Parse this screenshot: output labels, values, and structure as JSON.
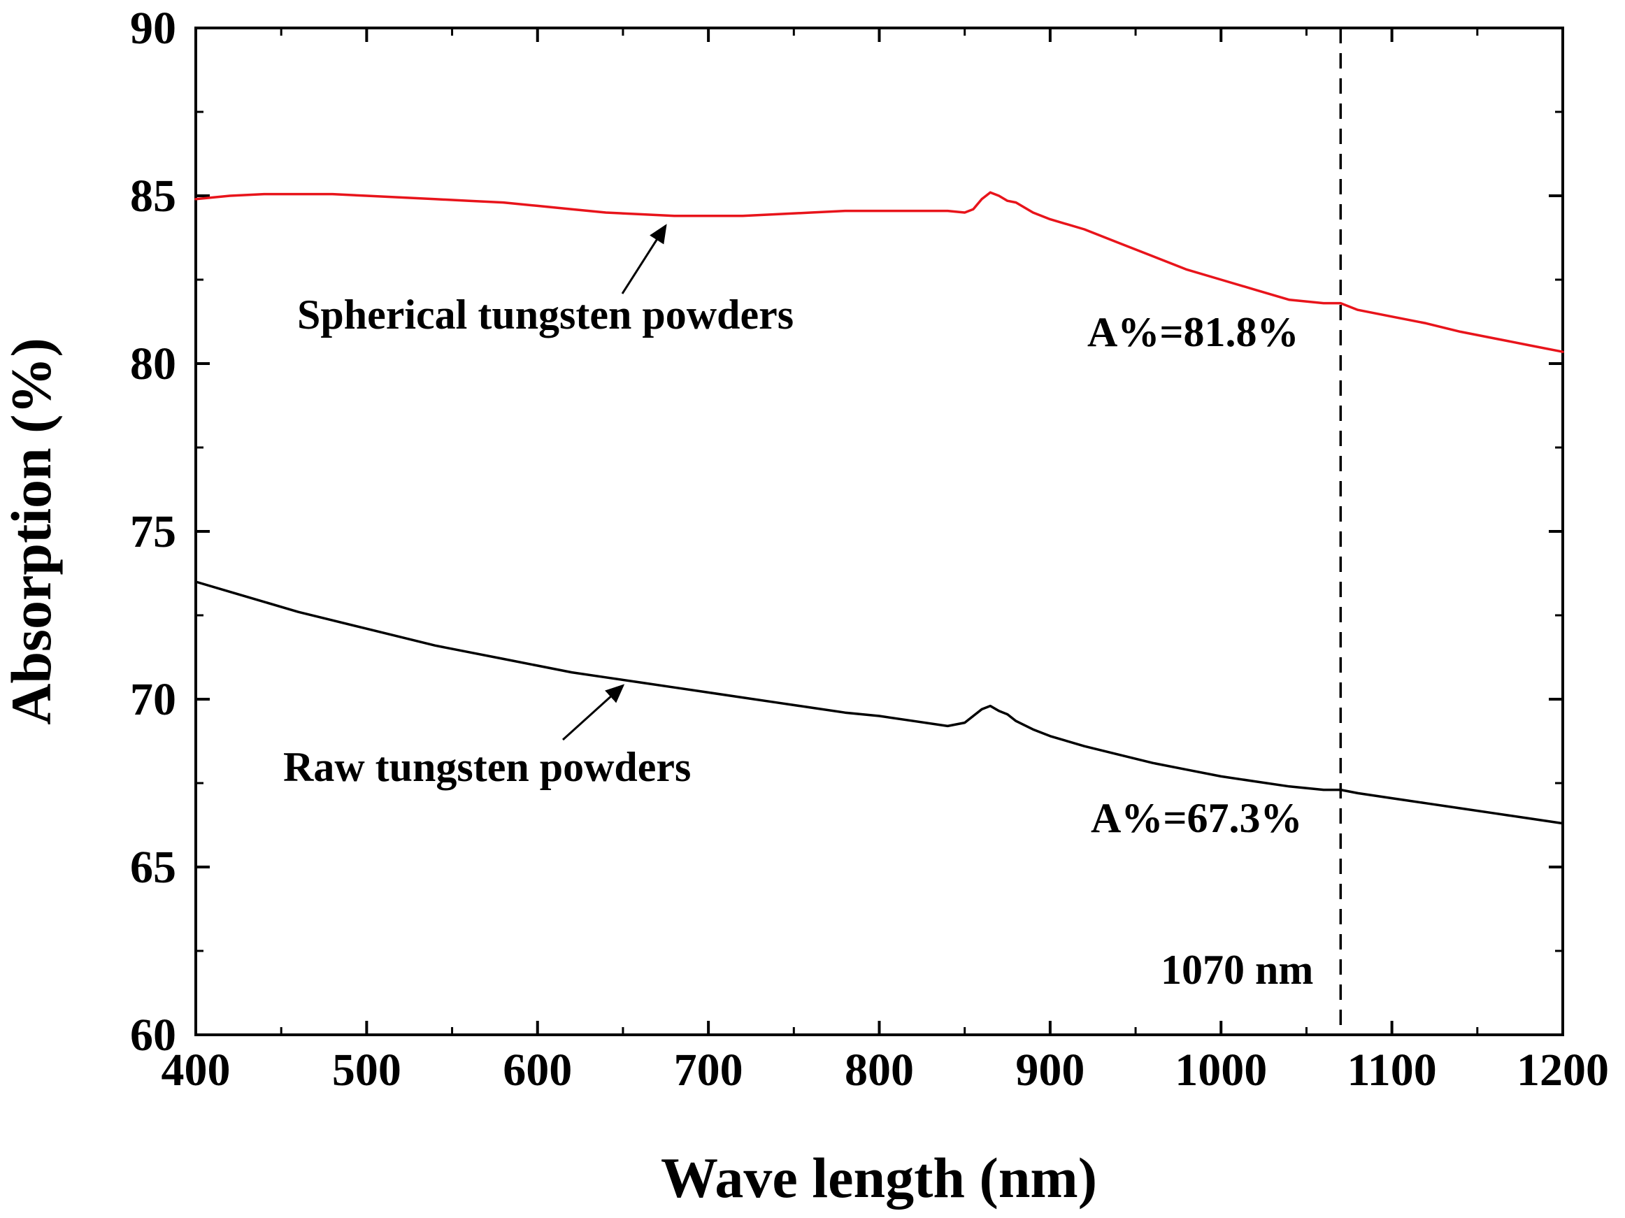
{
  "chart_data": {
    "type": "line",
    "title": "",
    "xlabel": "Wave length (nm)",
    "ylabel": "Absorption (%)",
    "xlim": [
      400,
      1200
    ],
    "ylim": [
      60,
      90
    ],
    "xticks": [
      400,
      500,
      600,
      700,
      800,
      900,
      1000,
      1100,
      1200
    ],
    "yticks": [
      60,
      65,
      70,
      75,
      80,
      85,
      90
    ],
    "grid": false,
    "legend": "none",
    "series": [
      {
        "name": "Spherical tungsten powders",
        "color": "#e8141b",
        "x": [
          400,
          420,
          440,
          460,
          480,
          500,
          520,
          540,
          560,
          580,
          600,
          620,
          640,
          660,
          680,
          700,
          720,
          740,
          760,
          780,
          800,
          820,
          840,
          850,
          855,
          860,
          865,
          870,
          875,
          880,
          890,
          900,
          920,
          940,
          960,
          980,
          1000,
          1020,
          1040,
          1060,
          1070,
          1080,
          1100,
          1120,
          1140,
          1160,
          1180,
          1200
        ],
        "y": [
          84.9,
          85.0,
          85.05,
          85.05,
          85.05,
          85.0,
          84.95,
          84.9,
          84.85,
          84.8,
          84.7,
          84.6,
          84.5,
          84.45,
          84.4,
          84.4,
          84.4,
          84.45,
          84.5,
          84.55,
          84.55,
          84.55,
          84.55,
          84.5,
          84.6,
          84.9,
          85.1,
          85.0,
          84.85,
          84.8,
          84.5,
          84.3,
          84.0,
          83.6,
          83.2,
          82.8,
          82.5,
          82.2,
          81.9,
          81.8,
          81.8,
          81.6,
          81.4,
          81.2,
          80.95,
          80.75,
          80.55,
          80.35
        ]
      },
      {
        "name": "Raw tungsten powders",
        "color": "#000000",
        "x": [
          400,
          420,
          440,
          460,
          480,
          500,
          520,
          540,
          560,
          580,
          600,
          620,
          640,
          660,
          680,
          700,
          720,
          740,
          760,
          780,
          800,
          820,
          840,
          850,
          855,
          860,
          865,
          870,
          875,
          880,
          890,
          900,
          920,
          940,
          960,
          980,
          1000,
          1020,
          1040,
          1060,
          1070,
          1080,
          1100,
          1120,
          1140,
          1160,
          1180,
          1200
        ],
        "y": [
          73.5,
          73.2,
          72.9,
          72.6,
          72.35,
          72.1,
          71.85,
          71.6,
          71.4,
          71.2,
          71.0,
          70.8,
          70.65,
          70.5,
          70.35,
          70.2,
          70.05,
          69.9,
          69.75,
          69.6,
          69.5,
          69.35,
          69.2,
          69.3,
          69.5,
          69.7,
          69.8,
          69.65,
          69.55,
          69.35,
          69.1,
          68.9,
          68.6,
          68.35,
          68.1,
          67.9,
          67.7,
          67.55,
          67.4,
          67.3,
          67.3,
          67.2,
          67.05,
          66.9,
          66.75,
          66.6,
          66.45,
          66.3
        ]
      }
    ],
    "reference_line": {
      "x": 1070,
      "label": "1070 nm",
      "style": "dashed"
    },
    "annotations": [
      {
        "text": "Spherical tungsten powders",
        "target_x": 675,
        "target_y": 84.4
      },
      {
        "text": "Raw tungsten powders",
        "target_x": 650,
        "target_y": 70.7
      },
      {
        "text": "A%=81.8%"
      },
      {
        "text": "A%=67.3%"
      }
    ]
  }
}
